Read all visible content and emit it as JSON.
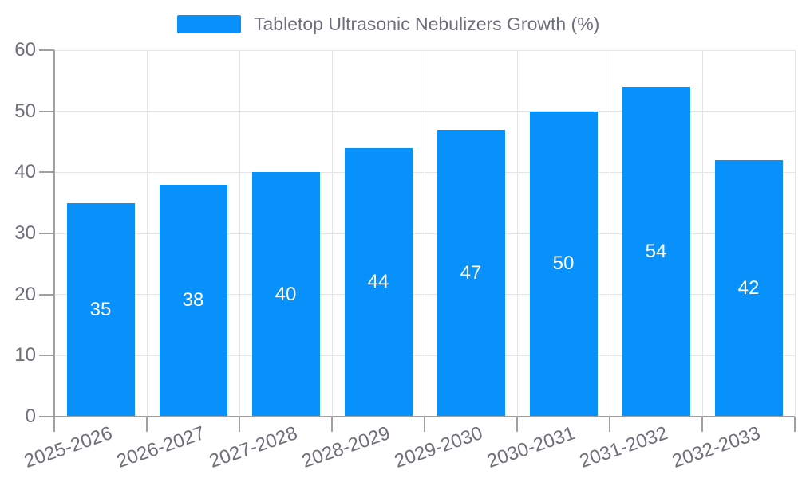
{
  "legend": {
    "label": "Tabletop Ultrasonic Nebulizers Growth (%)"
  },
  "colors": {
    "bar": "#0991fb",
    "grid": "#e5e5e5",
    "axis": "#a0a0a0",
    "text": "#6e7079",
    "value_label": "#ffffff",
    "background": "#ffffff"
  },
  "chart_data": {
    "type": "bar",
    "title": "Tabletop Ultrasonic Nebulizers Growth (%)",
    "categories": [
      "2025-2026",
      "2026-2027",
      "2027-2028",
      "2028-2029",
      "2029-2030",
      "2030-2031",
      "2031-2032",
      "2032-2033"
    ],
    "values": [
      35,
      38,
      40,
      44,
      47,
      50,
      54,
      42
    ],
    "xlabel": "",
    "ylabel": "",
    "ylim": [
      0,
      60
    ],
    "yticks": [
      0,
      10,
      20,
      30,
      40,
      50,
      60
    ],
    "grid": true,
    "legend_position": "top-center",
    "value_labels": "inside-center",
    "x_label_rotation_deg": -19
  }
}
